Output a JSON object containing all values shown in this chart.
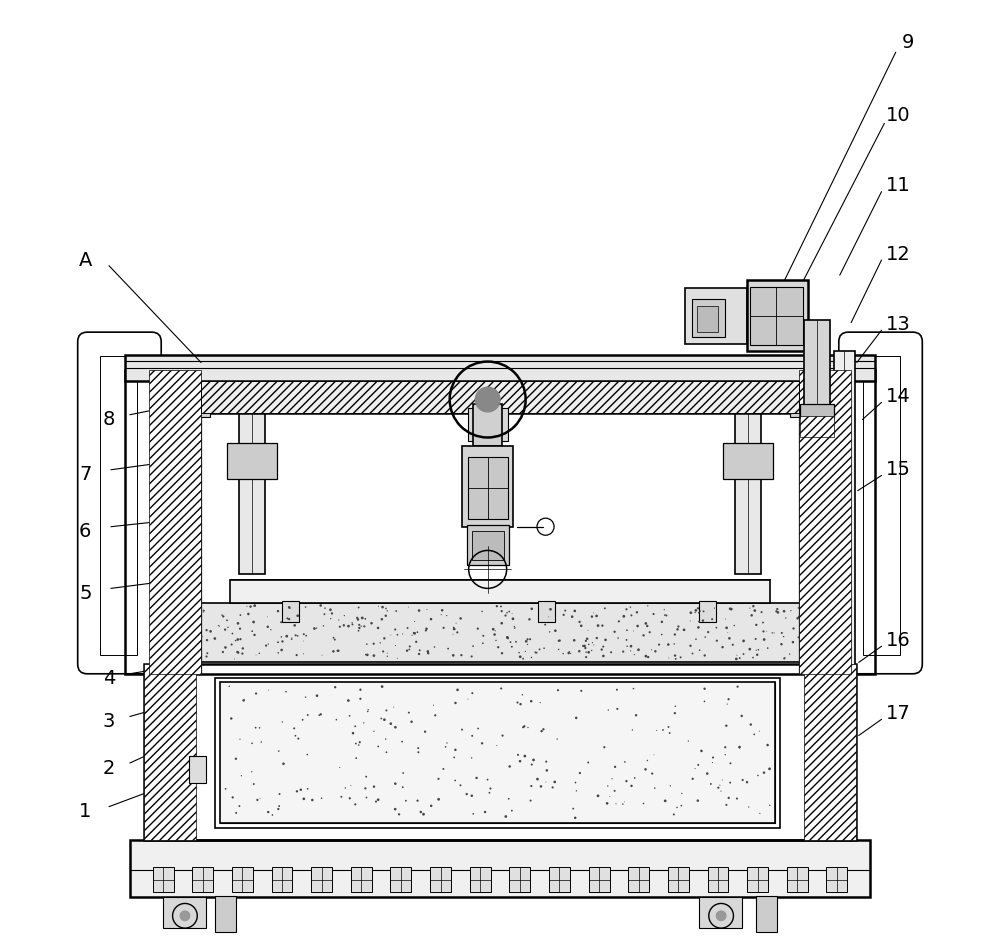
{
  "bg_color": "#ffffff",
  "line_color": "#000000",
  "figure_width": 10.0,
  "figure_height": 9.49
}
